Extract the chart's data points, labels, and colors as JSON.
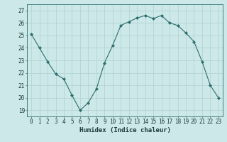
{
  "x": [
    0,
    1,
    2,
    3,
    4,
    5,
    6,
    7,
    8,
    9,
    10,
    11,
    12,
    13,
    14,
    15,
    16,
    17,
    18,
    19,
    20,
    21,
    22,
    23
  ],
  "y": [
    25.1,
    24.0,
    22.9,
    21.9,
    21.5,
    20.2,
    19.0,
    19.6,
    20.7,
    22.8,
    24.2,
    25.8,
    26.1,
    26.4,
    26.6,
    26.35,
    26.6,
    26.0,
    25.8,
    25.2,
    24.5,
    22.9,
    21.0,
    20.0
  ],
  "line_color": "#2d6e6e",
  "marker": "D",
  "marker_size": 2.0,
  "bg_color": "#cce8e8",
  "grid_color": "#b0d0d0",
  "xlabel": "Humidex (Indice chaleur)",
  "ylim": [
    18.5,
    27.5
  ],
  "xlim": [
    -0.5,
    23.5
  ],
  "yticks": [
    19,
    20,
    21,
    22,
    23,
    24,
    25,
    26,
    27
  ],
  "xticks": [
    0,
    1,
    2,
    3,
    4,
    5,
    6,
    7,
    8,
    9,
    10,
    11,
    12,
    13,
    14,
    15,
    16,
    17,
    18,
    19,
    20,
    21,
    22,
    23
  ],
  "label_fontsize": 6.5,
  "tick_fontsize": 5.5
}
